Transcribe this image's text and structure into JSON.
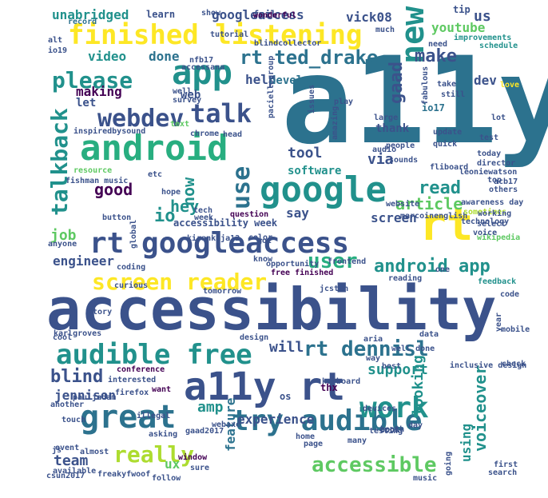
{
  "palette": {
    "dark_purple": "#440154",
    "indigo": "#472d7b",
    "blue": "#3b528b",
    "steel": "#2c728e",
    "teal": "#21918c",
    "sea": "#28ae80",
    "green": "#5ec962",
    "lime": "#addc30",
    "yellow": "#fde725"
  },
  "words": [
    {
      "text": "a11y",
      "c": "steel"
    },
    {
      "text": "accessibility",
      "c": "blue"
    },
    {
      "text": "android",
      "c": "sea"
    },
    {
      "text": "google",
      "c": "teal"
    },
    {
      "text": "rt googleaccess",
      "c": "blue"
    },
    {
      "text": "a11y rt",
      "c": "blue"
    },
    {
      "text": "rt",
      "c": "yellow"
    },
    {
      "text": "finished listening",
      "c": "yellow"
    },
    {
      "text": "app",
      "c": "teal"
    },
    {
      "text": "audible free",
      "c": "teal"
    },
    {
      "text": "great",
      "c": "steel"
    },
    {
      "text": "try audible",
      "c": "steel"
    },
    {
      "text": "new",
      "c": "teal"
    },
    {
      "text": "screen reader",
      "c": "yellow"
    },
    {
      "text": "talk",
      "c": "blue"
    },
    {
      "text": "webdev",
      "c": "blue"
    },
    {
      "text": "work",
      "c": "teal"
    },
    {
      "text": "rt ted_drake",
      "c": "steel"
    },
    {
      "text": "please",
      "c": "teal"
    },
    {
      "text": "talkback",
      "c": "teal"
    },
    {
      "text": "really",
      "c": "lime"
    },
    {
      "text": "accessible",
      "c": "green"
    },
    {
      "text": "rt dennisl",
      "c": "steel"
    },
    {
      "text": "user",
      "c": "sea"
    },
    {
      "text": "use",
      "c": "steel"
    },
    {
      "text": "android app",
      "c": "teal"
    },
    {
      "text": "unabridged",
      "c": "teal"
    },
    {
      "text": "googleaccess",
      "c": "blue"
    },
    {
      "text": "vick08",
      "c": "blue"
    },
    {
      "text": "us",
      "c": "blue"
    },
    {
      "text": "youtube",
      "c": "green"
    },
    {
      "text": "video",
      "c": "teal"
    },
    {
      "text": "done",
      "c": "steel"
    },
    {
      "text": "make",
      "c": "blue"
    },
    {
      "text": "help",
      "c": "blue"
    },
    {
      "text": "developer",
      "c": "steel"
    },
    {
      "text": "making",
      "c": "dark_purple"
    },
    {
      "text": "web",
      "c": "blue"
    },
    {
      "text": "let",
      "c": "blue"
    },
    {
      "text": "dev",
      "c": "blue"
    },
    {
      "text": "gaad",
      "c": "blue"
    },
    {
      "text": "tool",
      "c": "blue"
    },
    {
      "text": "via",
      "c": "blue"
    },
    {
      "text": "software",
      "c": "teal"
    },
    {
      "text": "good",
      "c": "dark_purple"
    },
    {
      "text": "now",
      "c": "teal"
    },
    {
      "text": "hey",
      "c": "teal"
    },
    {
      "text": "io",
      "c": "teal"
    },
    {
      "text": "read",
      "c": "teal"
    },
    {
      "text": "article",
      "c": "green"
    },
    {
      "text": "say",
      "c": "blue"
    },
    {
      "text": "screen",
      "c": "blue"
    },
    {
      "text": "job",
      "c": "green"
    },
    {
      "text": "engineer",
      "c": "blue"
    },
    {
      "text": "will",
      "c": "blue"
    },
    {
      "text": "blind",
      "c": "blue"
    },
    {
      "text": "support",
      "c": "teal"
    },
    {
      "text": "jennison",
      "c": "blue"
    },
    {
      "text": "looking",
      "c": "teal"
    },
    {
      "text": "amp",
      "c": "teal"
    },
    {
      "text": "experience",
      "c": "blue"
    },
    {
      "text": "voiceover",
      "c": "teal"
    },
    {
      "text": "using",
      "c": "teal"
    },
    {
      "text": "team",
      "c": "blue"
    },
    {
      "text": "ux",
      "c": "green"
    },
    {
      "text": "feature",
      "c": "steel"
    },
    {
      "text": "os",
      "c": "blue"
    },
    {
      "text": "thank",
      "c": "blue"
    },
    {
      "text": "accessibility week",
      "c": "blue"
    },
    {
      "text": "thx",
      "c": "dark_purple"
    },
    {
      "text": "io17",
      "c": "steel"
    },
    {
      "text": "fail",
      "c": "blue"
    },
    {
      "text": "learn",
      "c": "blue"
    },
    {
      "text": "wonderful",
      "c": "dark_purple"
    },
    {
      "text": "tip",
      "c": "blue"
    },
    {
      "text": "record",
      "c": "steel"
    },
    {
      "text": "show",
      "c": "blue"
    },
    {
      "text": "tutorial",
      "c": "blue"
    },
    {
      "text": "blindcollector",
      "c": "blue"
    },
    {
      "text": "nfb17",
      "c": "blue"
    },
    {
      "text": "alt",
      "c": "blue"
    },
    {
      "text": "io19",
      "c": "blue"
    },
    {
      "text": "much",
      "c": "blue"
    },
    {
      "text": "need",
      "c": "blue"
    },
    {
      "text": "improvements",
      "c": "teal"
    },
    {
      "text": "schedule",
      "c": "teal"
    },
    {
      "text": "love",
      "c": "yellow"
    },
    {
      "text": "take",
      "c": "blue"
    },
    {
      "text": "still",
      "c": "blue"
    },
    {
      "text": "lot",
      "c": "blue"
    },
    {
      "text": "test",
      "c": "blue"
    },
    {
      "text": "update",
      "c": "blue"
    },
    {
      "text": "quick",
      "c": "blue"
    },
    {
      "text": "today",
      "c": "blue"
    },
    {
      "text": "director",
      "c": "blue"
    },
    {
      "text": "leoniewatson",
      "c": "blue"
    },
    {
      "text": "people",
      "c": "blue"
    },
    {
      "text": "sounds",
      "c": "blue"
    },
    {
      "text": "fliboard",
      "c": "blue"
    },
    {
      "text": "accessana",
      "c": "blue"
    },
    {
      "text": "survey",
      "c": "blue"
    },
    {
      "text": "well",
      "c": "blue"
    },
    {
      "text": "play",
      "c": "blue"
    },
    {
      "text": "chrome",
      "c": "blue"
    },
    {
      "text": "text",
      "c": "green"
    },
    {
      "text": "head",
      "c": "blue"
    },
    {
      "text": "inspiredbysound",
      "c": "blue"
    },
    {
      "text": "resource",
      "c": "green"
    },
    {
      "text": "fishman music",
      "c": "blue"
    },
    {
      "text": "etc",
      "c": "blue"
    },
    {
      "text": "hope",
      "c": "blue"
    },
    {
      "text": "week",
      "c": "blue"
    },
    {
      "text": "tech",
      "c": "blue"
    },
    {
      "text": "button",
      "c": "blue"
    },
    {
      "text": "website",
      "c": "blue"
    },
    {
      "text": "marcoinenglish",
      "c": "blue"
    },
    {
      "text": "sometimes",
      "c": "lime"
    },
    {
      "text": "working",
      "c": "blue"
    },
    {
      "text": "technology",
      "c": "blue"
    },
    {
      "text": "wikipedia",
      "c": "green"
    },
    {
      "text": "question",
      "c": "dark_purple"
    },
    {
      "text": "color",
      "c": "blue"
    },
    {
      "text": "got",
      "c": "blue"
    },
    {
      "text": "kirankaja12",
      "c": "blue"
    },
    {
      "text": "know",
      "c": "blue"
    },
    {
      "text": "opportunity",
      "c": "blue"
    },
    {
      "text": "free finished",
      "c": "dark_purple"
    },
    {
      "text": "frontend",
      "c": "blue"
    },
    {
      "text": "reading",
      "c": "blue"
    },
    {
      "text": "one",
      "c": "blue"
    },
    {
      "text": "feedback",
      "c": "teal"
    },
    {
      "text": "code",
      "c": "blue"
    },
    {
      "text": "coding",
      "c": "blue"
    },
    {
      "text": "curious",
      "c": "blue"
    },
    {
      "text": "tomorrow",
      "c": "blue"
    },
    {
      "text": "story",
      "c": "blue"
    },
    {
      "text": "cool",
      "c": "blue"
    },
    {
      "text": "karlgroves",
      "c": "blue"
    },
    {
      "text": "design",
      "c": "blue"
    },
    {
      "text": "conference",
      "c": "dark_purple"
    },
    {
      "text": "interested",
      "c": "blue"
    },
    {
      "text": "pauljadam",
      "c": "blue"
    },
    {
      "text": "keyboard",
      "c": "blue"
    },
    {
      "text": "aria",
      "c": "blue"
    },
    {
      "text": "way",
      "c": "blue"
    },
    {
      "text": "well done",
      "c": "blue"
    },
    {
      "text": "best",
      "c": "blue"
    },
    {
      "text": "data",
      "c": "blue"
    },
    {
      "text": "mobile",
      "c": "blue"
    },
    {
      "text": "check",
      "c": "blue"
    },
    {
      "text": "want",
      "c": "dark_purple"
    },
    {
      "text": "firefox",
      "c": "blue"
    },
    {
      "text": "devices",
      "c": "blue"
    },
    {
      "text": "another",
      "c": "blue"
    },
    {
      "text": "touch",
      "c": "blue"
    },
    {
      "text": "illegal",
      "c": "blue"
    },
    {
      "text": "testing",
      "c": "blue"
    },
    {
      "text": "book",
      "c": "blue"
    },
    {
      "text": "booth",
      "c": "blue"
    },
    {
      "text": "event",
      "c": "blue"
    },
    {
      "text": "webaxe",
      "c": "blue"
    },
    {
      "text": "gaad2017",
      "c": "blue"
    },
    {
      "text": "home",
      "c": "blue"
    },
    {
      "text": "page",
      "c": "blue"
    },
    {
      "text": "asking",
      "c": "blue"
    },
    {
      "text": "almost",
      "c": "blue"
    },
    {
      "text": "available",
      "c": "blue"
    },
    {
      "text": "freakyfwoof",
      "c": "blue"
    },
    {
      "text": "window",
      "c": "dark_purple"
    },
    {
      "text": "sure",
      "c": "blue"
    },
    {
      "text": "follow",
      "c": "blue"
    },
    {
      "text": "music",
      "c": "blue"
    },
    {
      "text": "first",
      "c": "blue"
    },
    {
      "text": "search",
      "c": "blue"
    },
    {
      "text": "going",
      "c": "blue"
    },
    {
      "text": "day",
      "c": "blue"
    },
    {
      "text": "js",
      "c": "blue"
    },
    {
      "text": "select",
      "c": "blue"
    },
    {
      "text": "voice",
      "c": "blue"
    },
    {
      "text": "others",
      "c": "blue"
    },
    {
      "text": "top",
      "c": "blue"
    },
    {
      "text": "acb17",
      "c": "blue"
    },
    {
      "text": "awareness day",
      "c": "blue"
    },
    {
      "text": "paciellogroup",
      "c": "blue"
    },
    {
      "text": "issues",
      "c": "blue"
    },
    {
      "text": "amazing",
      "c": "blue"
    },
    {
      "text": "audio",
      "c": "blue"
    },
    {
      "text": "large",
      "c": "blue"
    },
    {
      "text": "fabulous",
      "c": "blue"
    },
    {
      "text": "year",
      "c": "blue"
    },
    {
      "text": "global",
      "c": "blue"
    },
    {
      "text": "anyone",
      "c": "blue"
    },
    {
      "text": "jcsten",
      "c": "blue"
    },
    {
      "text": "csun2017",
      "c": "blue"
    },
    {
      "text": "many",
      "c": "blue"
    },
    {
      "text": "inclusive design",
      "c": "blue"
    }
  ]
}
